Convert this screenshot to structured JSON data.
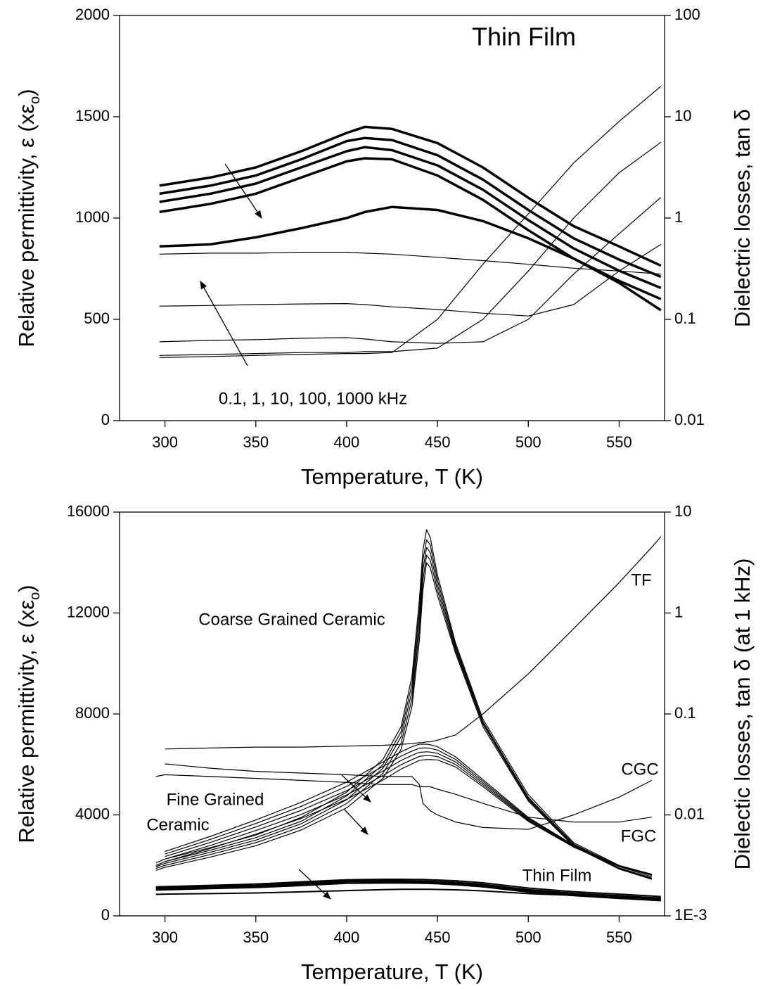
{
  "chart_data": [
    {
      "type": "line",
      "title": "Thin Film",
      "x_label": "Temperature, T (K)",
      "y_label": [
        "Relative permittivity, ε (xε",
        "o",
        ")"
      ],
      "y2_label": "Dielectric losses, tan δ",
      "annotations": [
        "0.1, 1, 10, 100, 1000 kHz"
      ],
      "x": [
        297,
        325,
        350,
        375,
        400,
        410,
        425,
        450,
        475,
        500,
        525,
        550,
        573
      ],
      "xlim": [
        275,
        575
      ],
      "xticks": [
        300,
        350,
        400,
        450,
        500,
        550
      ],
      "ylim": [
        0,
        2000
      ],
      "yticks": [
        0,
        500,
        1000,
        1500,
        2000
      ],
      "y2lim": [
        0.01,
        100
      ],
      "y2ticks": [
        0.01,
        0.1,
        1,
        10,
        100
      ],
      "y2log": true,
      "series": [
        {
          "color": "#000000",
          "linewidth": 3.5,
          "values": [
            1160,
            1200,
            1250,
            1330,
            1420,
            1450,
            1440,
            1370,
            1250,
            1100,
            960,
            860,
            765
          ]
        },
        {
          "color": "#000000",
          "linewidth": 3.5,
          "values": [
            1120,
            1160,
            1210,
            1290,
            1380,
            1395,
            1385,
            1310,
            1190,
            1040,
            900,
            795,
            710
          ]
        },
        {
          "color": "#000000",
          "linewidth": 3.5,
          "values": [
            1080,
            1120,
            1170,
            1250,
            1330,
            1350,
            1335,
            1260,
            1140,
            990,
            850,
            740,
            655
          ]
        },
        {
          "color": "#000000",
          "linewidth": 3.5,
          "values": [
            1030,
            1070,
            1120,
            1200,
            1280,
            1295,
            1290,
            1210,
            1090,
            940,
            800,
            690,
            600
          ]
        },
        {
          "color": "#000000",
          "linewidth": 3.5,
          "values": [
            860,
            870,
            905,
            950,
            1000,
            1030,
            1055,
            1040,
            985,
            900,
            800,
            680,
            545
          ]
        },
        {
          "color": "#000000",
          "linewidth": 1.2,
          "axis": "y2",
          "values": [
            0.44,
            0.45,
            0.45,
            0.46,
            0.46,
            0.45,
            0.44,
            0.41,
            0.38,
            0.35,
            0.32,
            0.3,
            0.28
          ]
        },
        {
          "color": "#000000",
          "linewidth": 1.2,
          "axis": "y2",
          "values": [
            0.135,
            0.137,
            0.14,
            0.142,
            0.143,
            0.14,
            0.133,
            0.125,
            0.115,
            0.108,
            0.14,
            0.3,
            0.55
          ]
        },
        {
          "color": "#000000",
          "linewidth": 1.2,
          "axis": "y2",
          "values": [
            0.06,
            0.062,
            0.063,
            0.065,
            0.066,
            0.064,
            0.06,
            0.058,
            0.06,
            0.1,
            0.28,
            0.7,
            1.6
          ]
        },
        {
          "color": "#000000",
          "linewidth": 1.2,
          "axis": "y2",
          "values": [
            0.044,
            0.045,
            0.046,
            0.047,
            0.047,
            0.048,
            0.048,
            0.052,
            0.1,
            0.3,
            1,
            2.8,
            5.6
          ]
        },
        {
          "color": "#000000",
          "linewidth": 1.2,
          "axis": "y2",
          "values": [
            0.042,
            0.043,
            0.044,
            0.045,
            0.046,
            0.046,
            0.047,
            0.1,
            0.35,
            1.1,
            3.5,
            9,
            20
          ]
        }
      ]
    },
    {
      "type": "line",
      "x_label": "Temperature, T (K)",
      "y_label": [
        "Relative permittivity, ε (xε",
        "o",
        ")"
      ],
      "y2_label": "Dielectic losses, tan δ (at 1 kHz)",
      "annotations": [
        "Coarse Grained Ceramic",
        "Fine Grained",
        "Ceramic",
        "TF",
        "CGC",
        "FGC",
        "Thin Film"
      ],
      "x": [
        295,
        300,
        325,
        350,
        375,
        400,
        420,
        430,
        436,
        440,
        442,
        444,
        446,
        450,
        460,
        475,
        500,
        525,
        550,
        568,
        573
      ],
      "xlim": [
        275,
        575
      ],
      "xticks": [
        300,
        350,
        400,
        450,
        500,
        550
      ],
      "ylim": [
        0,
        16000
      ],
      "yticks": [
        0,
        4000,
        8000,
        12000,
        16000
      ],
      "y2lim": [
        0.001,
        10
      ],
      "y2ticks": [
        {
          "value": 0.001,
          "label": "1E-3"
        },
        0.01,
        0.1,
        1,
        10
      ],
      "y2log": true,
      "series": [
        {
          "color": "#000000",
          "linewidth": 1.2,
          "values": [
            2100,
            2250,
            2700,
            3200,
            3900,
            4900,
            6200,
            7500,
            9500,
            12500,
            14500,
            15300,
            15000,
            13500,
            10800,
            7800,
            4800,
            2900,
            2000,
            1600,
            null
          ]
        },
        {
          "color": "#000000",
          "linewidth": 1.2,
          "values": [
            2000,
            2150,
            2600,
            3100,
            3750,
            4750,
            6000,
            7300,
            9200,
            12100,
            14100,
            14900,
            14700,
            13300,
            10700,
            7700,
            4700,
            2850,
            1950,
            1550,
            null
          ]
        },
        {
          "color": "#000000",
          "linewidth": 1.2,
          "values": [
            1950,
            2080,
            2520,
            3000,
            3650,
            4600,
            5850,
            7100,
            8900,
            11700,
            13700,
            14600,
            14400,
            13100,
            10600,
            7650,
            4650,
            2800,
            1900,
            1500,
            null
          ]
        },
        {
          "color": "#000000",
          "linewidth": 1.2,
          "values": [
            1880,
            2000,
            2430,
            2900,
            3530,
            4450,
            5650,
            6850,
            8600,
            11300,
            13300,
            14300,
            14100,
            12900,
            10500,
            7600,
            4600,
            2780,
            1880,
            1480,
            null
          ]
        },
        {
          "color": "#000000",
          "linewidth": 1.2,
          "values": [
            1800,
            1920,
            2330,
            2780,
            3400,
            4280,
            5450,
            6600,
            8300,
            10900,
            12900,
            14000,
            13800,
            12700,
            10400,
            7500,
            4550,
            2750,
            1850,
            1450,
            null
          ]
        },
        {
          "color": "#000000",
          "linewidth": 1.2,
          "values": [
            null,
            2550,
            3150,
            3800,
            4500,
            5300,
            6100,
            6500,
            6700,
            6800,
            6800,
            6800,
            6780,
            6700,
            6300,
            5400,
            3900,
            2800,
            2000,
            1650,
            null
          ]
        },
        {
          "color": "#000000",
          "linewidth": 1.2,
          "values": [
            null,
            2450,
            3030,
            3660,
            4340,
            5130,
            5920,
            6330,
            6530,
            6640,
            6650,
            6650,
            6640,
            6570,
            6200,
            5330,
            3860,
            2780,
            1990,
            1640,
            null
          ]
        },
        {
          "color": "#000000",
          "linewidth": 1.2,
          "values": [
            null,
            2350,
            2910,
            3520,
            4180,
            4960,
            5740,
            6160,
            6360,
            6480,
            6490,
            6500,
            6490,
            6440,
            6100,
            5260,
            3820,
            2760,
            1980,
            1630,
            null
          ]
        },
        {
          "color": "#000000",
          "linewidth": 1.2,
          "values": [
            null,
            2250,
            2790,
            3380,
            4020,
            4790,
            5560,
            5990,
            6190,
            6320,
            6340,
            6350,
            6350,
            6310,
            6000,
            5190,
            3780,
            2740,
            1970,
            1620,
            null
          ]
        },
        {
          "color": "#000000",
          "linewidth": 1.2,
          "values": [
            null,
            2150,
            2670,
            3240,
            3860,
            4620,
            5380,
            5820,
            6020,
            6160,
            6180,
            6190,
            6190,
            6180,
            5900,
            5120,
            3740,
            2720,
            1960,
            1610,
            null
          ]
        },
        {
          "color": "#000000",
          "linewidth": 2,
          "values": [
            1150,
            1160,
            1210,
            1260,
            1350,
            1430,
            1450,
            1450,
            1445,
            1440,
            1440,
            1435,
            1430,
            1420,
            1390,
            1310,
            1100,
            960,
            860,
            785,
            765
          ]
        },
        {
          "color": "#000000",
          "linewidth": 2,
          "values": [
            1110,
            1120,
            1170,
            1210,
            1300,
            1390,
            1395,
            1393,
            1390,
            1385,
            1383,
            1380,
            1375,
            1360,
            1330,
            1250,
            1040,
            900,
            800,
            725,
            705
          ]
        },
        {
          "color": "#000000",
          "linewidth": 2,
          "values": [
            1070,
            1080,
            1130,
            1170,
            1250,
            1340,
            1350,
            1345,
            1342,
            1338,
            1335,
            1330,
            1325,
            1310,
            1280,
            1200,
            990,
            850,
            740,
            675,
            655
          ]
        },
        {
          "color": "#000000",
          "linewidth": 2,
          "values": [
            1020,
            1030,
            1080,
            1120,
            1200,
            1290,
            1300,
            1298,
            1296,
            1293,
            1290,
            1288,
            1283,
            1270,
            1230,
            1150,
            940,
            800,
            690,
            620,
            600
          ]
        },
        {
          "color": "#000000",
          "linewidth": 2,
          "values": [
            850,
            860,
            880,
            905,
            950,
            1000,
            1040,
            1050,
            1052,
            1053,
            1053,
            1053,
            1052,
            1045,
            1030,
            990,
            880,
            810,
            760,
            710,
            700
          ]
        },
        {
          "color": "#000000",
          "linewidth": 1.2,
          "axis": "y2",
          "values": [
            null,
            0.032,
            0.029,
            0.027,
            0.026,
            0.025,
            0.024,
            0.024,
            0.024,
            0.02,
            0.013,
            0.012,
            0.011,
            0.01,
            0.0085,
            0.0075,
            0.0072,
            0.01,
            0.015,
            0.022,
            null
          ]
        },
        {
          "color": "#000000",
          "linewidth": 1.2,
          "axis": "y2",
          "values": [
            0.024,
            0.025,
            0.024,
            0.023,
            0.022,
            0.021,
            0.02,
            0.02,
            0.02,
            0.019,
            0.019,
            0.019,
            0.019,
            0.018,
            0.016,
            0.013,
            0.0095,
            0.0085,
            0.0085,
            0.0095,
            null
          ]
        },
        {
          "color": "#000000",
          "linewidth": 1.2,
          "axis": "y2",
          "values": [
            null,
            0.045,
            0.046,
            0.047,
            0.047,
            0.048,
            0.049,
            0.05,
            0.051,
            0.052,
            0.052,
            0.053,
            0.053,
            0.055,
            0.062,
            0.1,
            0.25,
            0.7,
            2,
            4.5,
            5.7
          ]
        }
      ]
    }
  ]
}
